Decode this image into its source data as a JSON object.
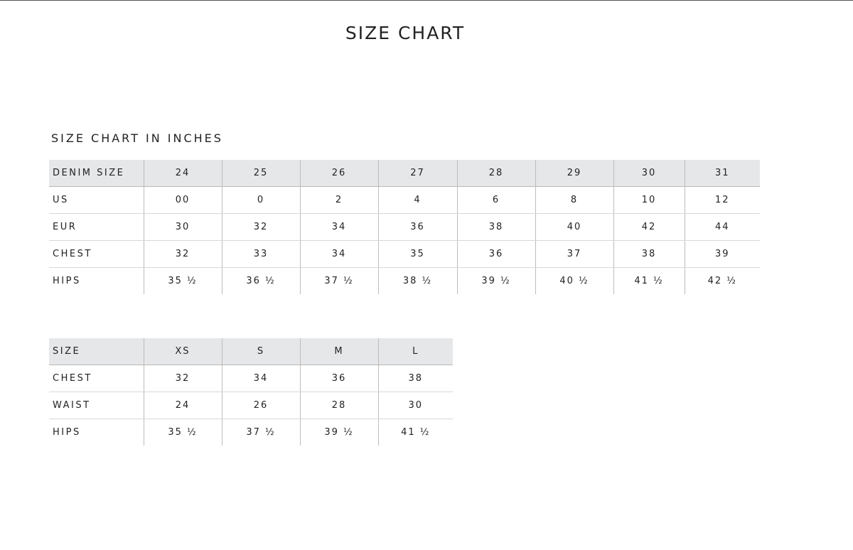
{
  "title": "SIZE CHART",
  "subtitle": "SIZE CHART IN INCHES",
  "denim_table": {
    "header": [
      "DENIM SIZE",
      "24",
      "25",
      "26",
      "27",
      "28",
      "29",
      "30",
      "31"
    ],
    "rows": [
      [
        "US",
        "00",
        "0",
        "2",
        "4",
        "6",
        "8",
        "10",
        "12"
      ],
      [
        "EUR",
        "30",
        "32",
        "34",
        "36",
        "38",
        "40",
        "42",
        "44"
      ],
      [
        "CHEST",
        "32",
        "33",
        "34",
        "35",
        "36",
        "37",
        "38",
        "39"
      ],
      [
        "HIPS",
        "35 ½",
        "36 ½",
        "37 ½",
        "38 ½",
        "39 ½",
        "40 ½",
        "41 ½",
        "42 ½"
      ]
    ]
  },
  "size_table": {
    "header": [
      "SIZE",
      "XS",
      "S",
      "M",
      "L"
    ],
    "rows": [
      [
        "CHEST",
        "32",
        "34",
        "36",
        "38"
      ],
      [
        "WAIST",
        "24",
        "26",
        "28",
        "30"
      ],
      [
        "HIPS",
        "35 ½",
        "37 ½",
        "39 ½",
        "41 ½"
      ]
    ]
  },
  "colors": {
    "header_bg": "#e6e7e9"
  }
}
